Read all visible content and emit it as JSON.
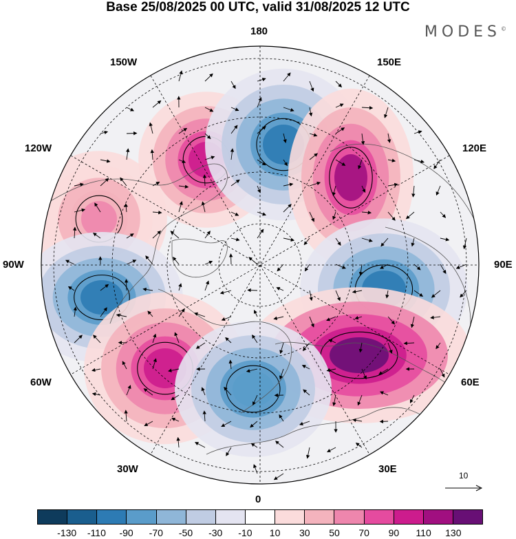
{
  "header": {
    "title": "Base 25/08/2025 00 UTC, valid 31/08/2025 12 UTC",
    "brand": "MODES"
  },
  "map": {
    "projection": "north-polar-stereographic",
    "longitude_labels": {
      "top": "180",
      "bottom": "0",
      "left": "90W",
      "right": "90E",
      "upper_left_1": "150W",
      "upper_left_2": "120W",
      "upper_right_1": "150E",
      "upper_right_2": "120E",
      "lower_left_1": "60W",
      "lower_left_2": "30W",
      "lower_right_1": "60E",
      "lower_right_2": "30E"
    },
    "reference_vector_label": "10",
    "anomaly_centers": [
      {
        "sign": "positive",
        "strength": 90,
        "label": "upper-left"
      },
      {
        "sign": "negative",
        "strength": -110,
        "label": "top"
      },
      {
        "sign": "positive",
        "strength": 110,
        "label": "upper-right"
      },
      {
        "sign": "positive",
        "strength": 50,
        "label": "left"
      },
      {
        "sign": "negative",
        "strength": -110,
        "label": "right"
      },
      {
        "sign": "negative",
        "strength": -110,
        "label": "west"
      },
      {
        "sign": "positive",
        "strength": 130,
        "label": "lower-right"
      },
      {
        "sign": "positive",
        "strength": 90,
        "label": "lower-left"
      },
      {
        "sign": "negative",
        "strength": -90,
        "label": "bottom"
      }
    ]
  },
  "colorbar": {
    "tick_labels": [
      "-130",
      "-110",
      "-90",
      "-70",
      "-50",
      "-30",
      "-10",
      "10",
      "30",
      "50",
      "70",
      "90",
      "110",
      "130"
    ],
    "colors": [
      "#0e3b5c",
      "#1a5e8e",
      "#2d7bb4",
      "#5a9cca",
      "#8fb6d8",
      "#c0cce3",
      "#e4e4f1",
      "#ffffff",
      "#fbdcdc",
      "#f4b3bd",
      "#ee86ad",
      "#e54b9f",
      "#cc1c8d",
      "#a10f80",
      "#680f75"
    ]
  }
}
